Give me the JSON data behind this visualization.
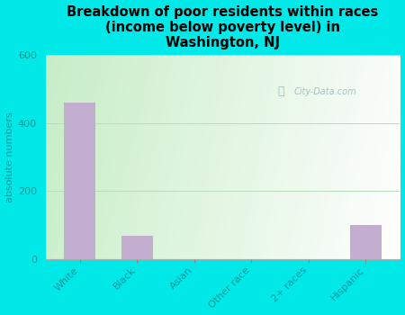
{
  "categories": [
    "White",
    "Black",
    "Asian",
    "Other race",
    "2+ races",
    "Hispanic"
  ],
  "values": [
    460,
    70,
    0,
    0,
    0,
    100
  ],
  "bar_color": "#c4aed0",
  "background_color": "#00e8e8",
  "plot_bg_topleft": "#c8ecc8",
  "plot_bg_right": "#e8f8f0",
  "plot_bg_bottom": "#f0fff8",
  "title": "Breakdown of poor residents within races\n(income below poverty level) in\nWashington, NJ",
  "ylabel": "absolute numbers",
  "ylim": [
    0,
    600
  ],
  "yticks": [
    0,
    200,
    400,
    600
  ],
  "gridline_color": "#bbddbb",
  "title_fontsize": 10.5,
  "ylabel_fontsize": 8,
  "tick_fontsize": 8,
  "tick_color": "#009999",
  "watermark": "City-Data.com"
}
